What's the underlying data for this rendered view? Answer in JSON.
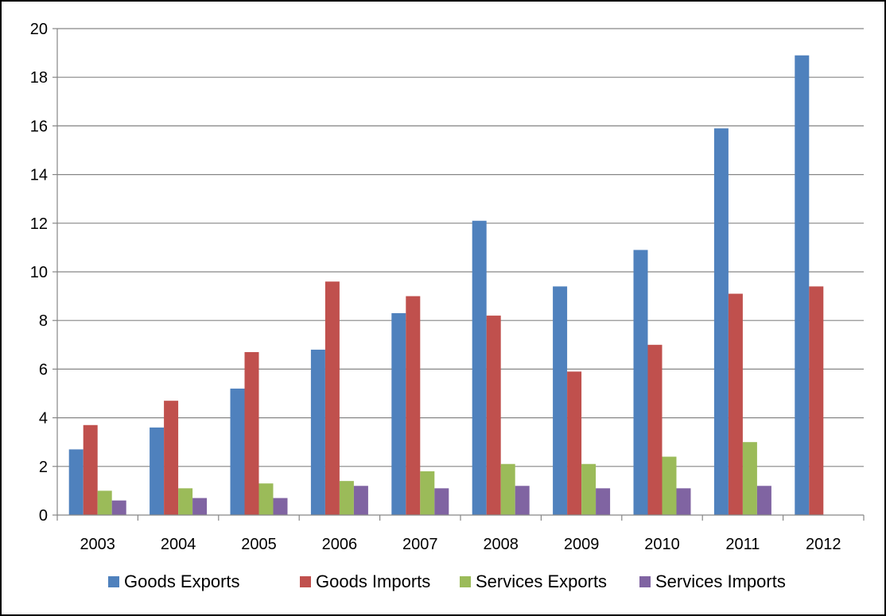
{
  "chart_data": {
    "type": "bar",
    "title": "",
    "xlabel": "",
    "ylabel": "",
    "categories": [
      "2003",
      "2004",
      "2005",
      "2006",
      "2007",
      "2008",
      "2009",
      "2010",
      "2011",
      "2012"
    ],
    "ylim": [
      0,
      20
    ],
    "yticks": [
      0,
      2,
      4,
      6,
      8,
      10,
      12,
      14,
      16,
      18,
      20
    ],
    "grid": true,
    "legend_position": "bottom",
    "series": [
      {
        "name": "Goods Exports",
        "color": "#4f81bd",
        "values": [
          2.7,
          3.6,
          5.2,
          6.8,
          8.3,
          12.1,
          9.4,
          10.9,
          15.9,
          18.9
        ]
      },
      {
        "name": "Goods Imports",
        "color": "#c0504d",
        "values": [
          3.7,
          4.7,
          6.7,
          9.6,
          9.0,
          8.2,
          5.9,
          7.0,
          9.1,
          9.4
        ]
      },
      {
        "name": "Services Exports",
        "color": "#9bbb59",
        "values": [
          1.0,
          1.1,
          1.3,
          1.4,
          1.8,
          2.1,
          2.1,
          2.4,
          3.0,
          null
        ]
      },
      {
        "name": "Services Imports",
        "color": "#8064a2",
        "values": [
          0.6,
          0.7,
          0.7,
          1.2,
          1.1,
          1.2,
          1.1,
          1.1,
          1.2,
          null
        ]
      }
    ]
  }
}
